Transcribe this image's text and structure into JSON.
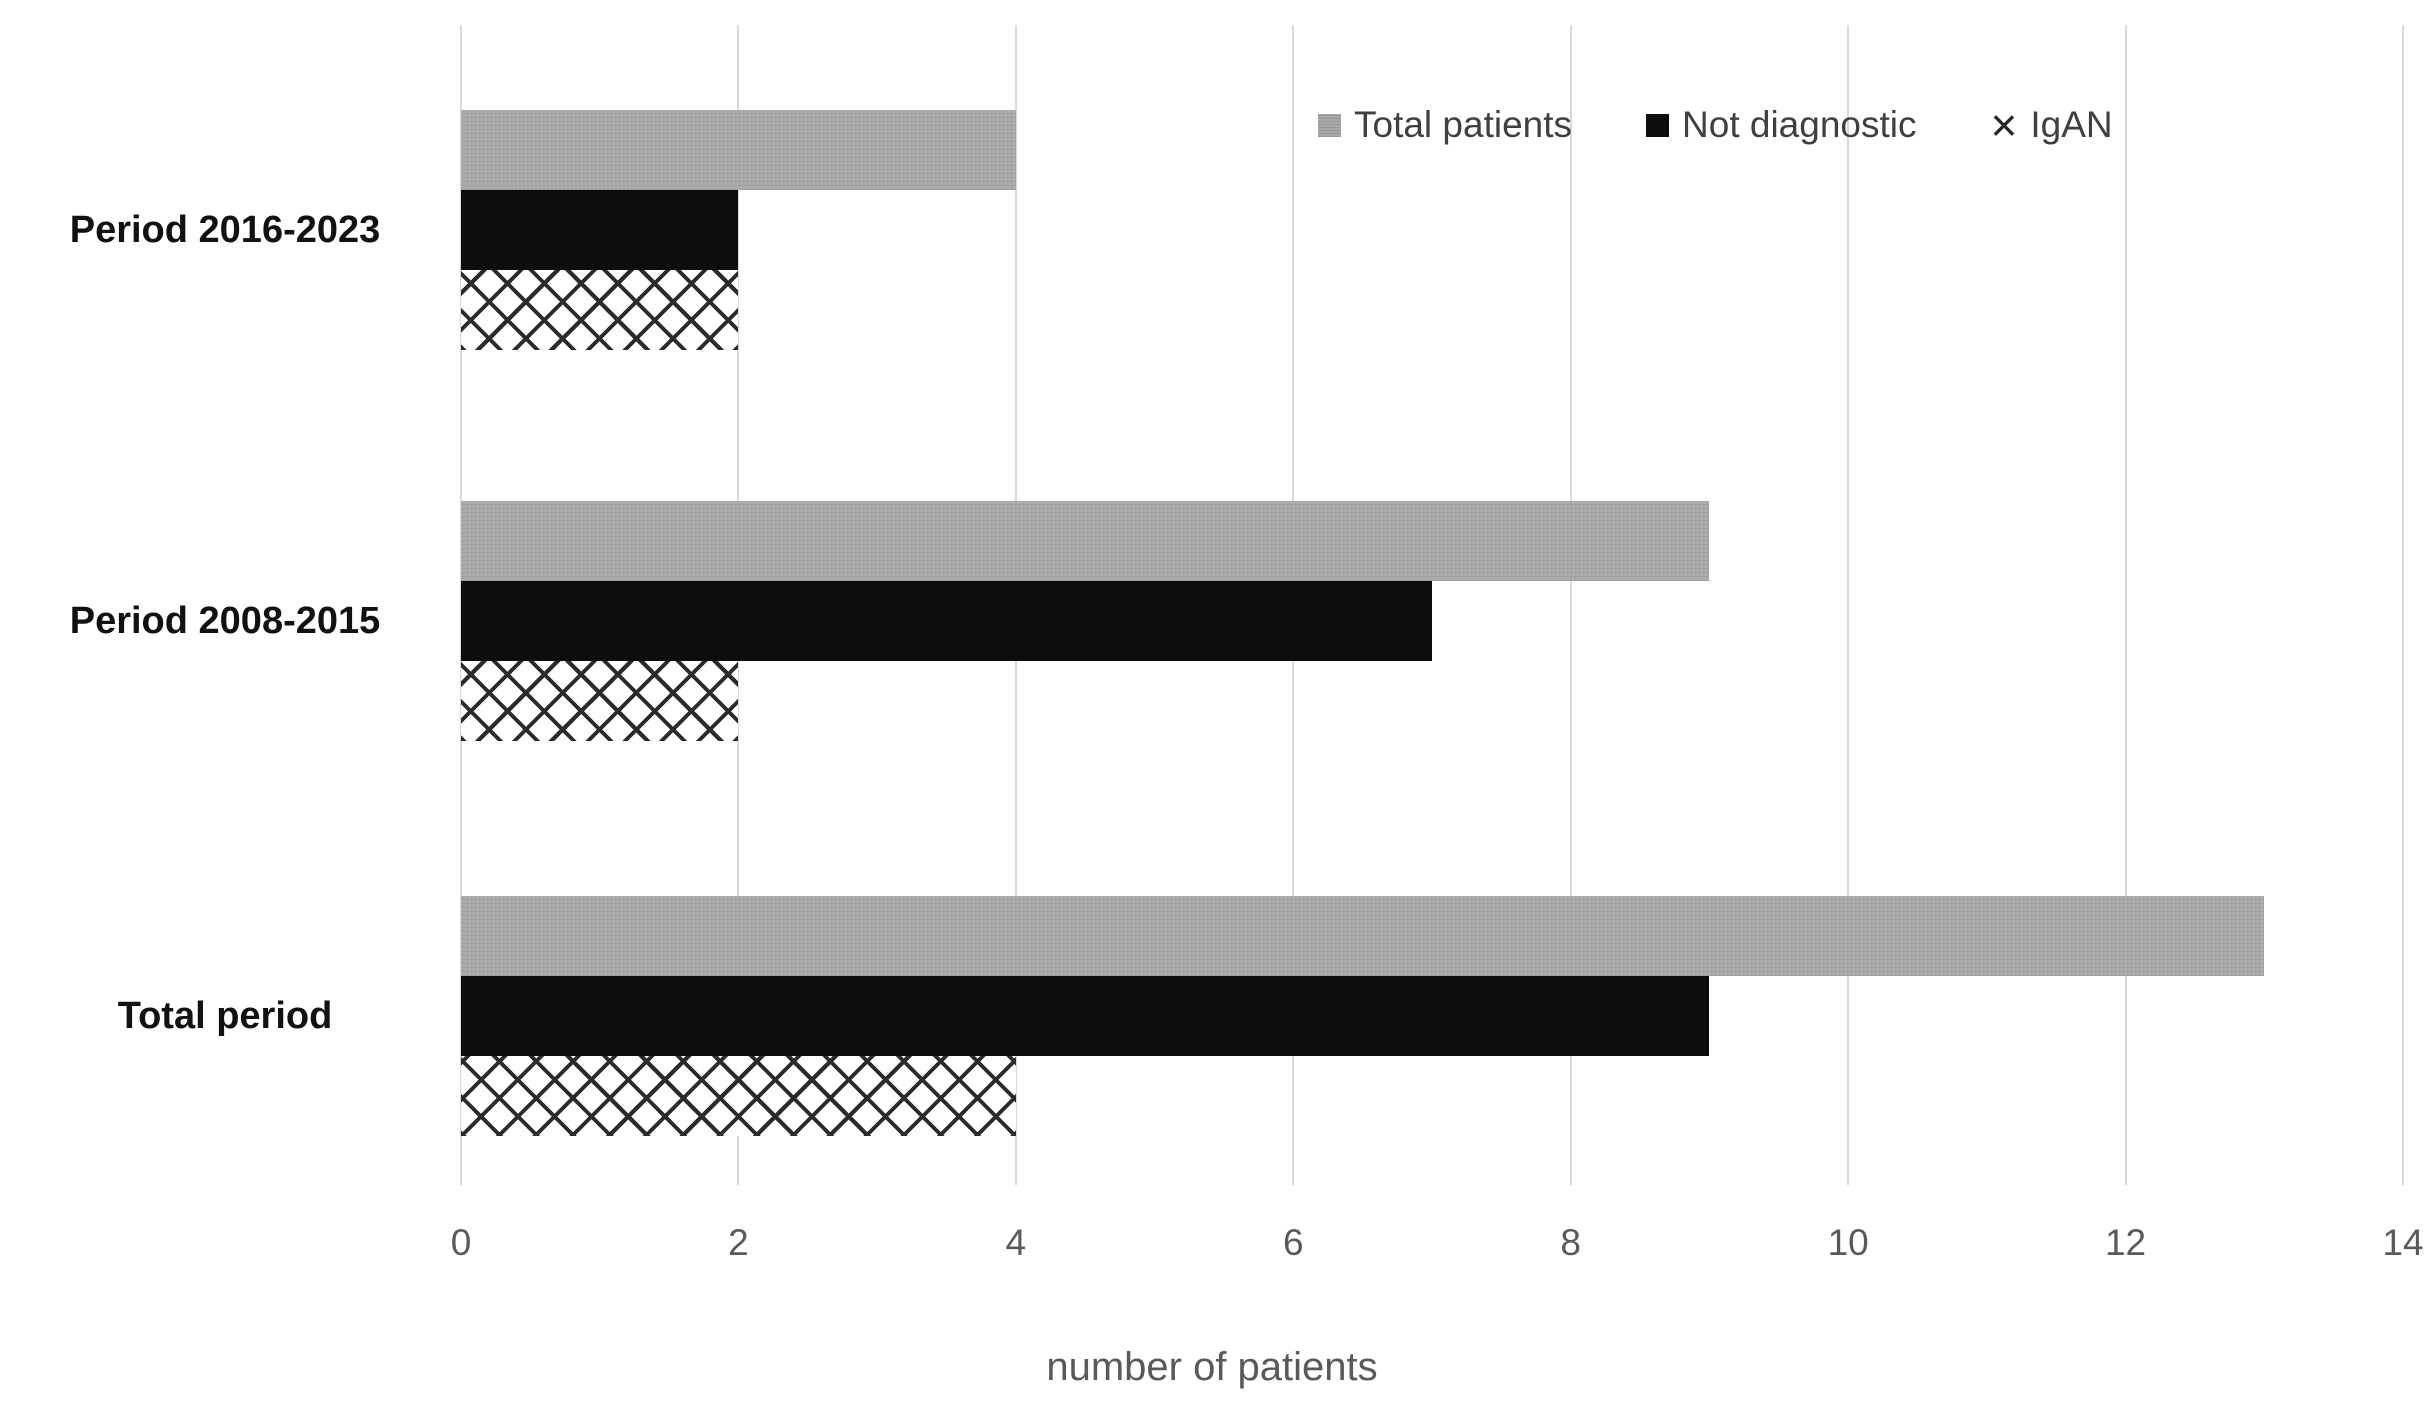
{
  "chart_data": {
    "type": "bar",
    "orientation": "horizontal",
    "title": "",
    "xlabel": "number of patients",
    "ylabel": "",
    "categories": [
      "Period 2016-2023",
      "Period 2008-2015",
      "Total period"
    ],
    "series": [
      {
        "name": "Total patients",
        "style": "solid-gray",
        "color": "#a9a9a9",
        "values": [
          4,
          9,
          13
        ]
      },
      {
        "name": "Not diagnostic",
        "style": "solid-black",
        "color": "#0d0d0d",
        "values": [
          2,
          7,
          9
        ]
      },
      {
        "name": "IgAN",
        "style": "crosshatch",
        "color": "#262626",
        "marker": "×",
        "values": [
          2,
          2,
          4
        ]
      }
    ],
    "x_ticks": [
      0,
      2,
      4,
      6,
      8,
      10,
      12,
      14
    ],
    "xlim": [
      0,
      14
    ],
    "grid": "vertical",
    "gridline_color": "#d9d9d9",
    "legend_position": "top-right",
    "background_color": "#ffffff"
  }
}
